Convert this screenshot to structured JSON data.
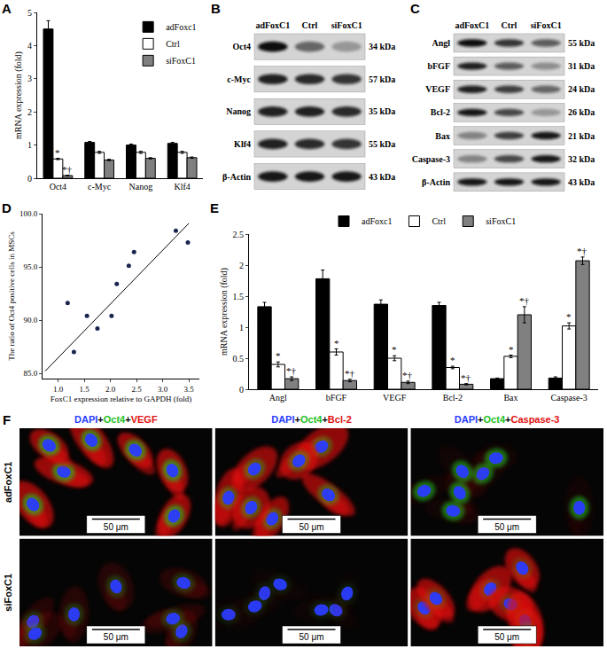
{
  "chart_data": [
    {
      "label": "A",
      "type": "bar",
      "y_label": "mRNA expression (fold)",
      "categories": [
        "Oct4",
        "c-Myc",
        "Nanog",
        "Klf4"
      ],
      "series": [
        {
          "name": "adFoxc1",
          "color": "#000000",
          "values": [
            4.5,
            1.08,
            1.0,
            1.05
          ],
          "errors": [
            0.25,
            0.03,
            0.03,
            0.03
          ]
        },
        {
          "name": "Ctrl",
          "color": "#ffffff",
          "values": [
            0.58,
            0.78,
            0.78,
            0.78
          ],
          "errors": [
            0.02,
            0.03,
            0.03,
            0.03
          ]
        },
        {
          "name": "siFoxC1",
          "color": "#808080",
          "values": [
            0.08,
            0.55,
            0.6,
            0.62
          ],
          "errors": [
            0.01,
            0.02,
            0.02,
            0.02
          ]
        }
      ],
      "ylim": [
        0,
        5
      ],
      "yticks": [
        0,
        1,
        2,
        3,
        4,
        5
      ],
      "grid": false,
      "legend": "top right",
      "annotations": [
        {
          "category": "Oct4",
          "series": "Ctrl",
          "text": "*"
        },
        {
          "category": "Oct4",
          "series": "siFoxC1",
          "text": "*†"
        }
      ]
    },
    {
      "label": "D",
      "type": "scatter",
      "x_label": "FoxC1 expression relative to GAPDH (fold)",
      "y_label": "The ratio of Oct4 positive cells in MSCs",
      "series": [
        {
          "type": "scatter",
          "marker": "circle",
          "color": "#1a2550",
          "x": [
            1.18,
            1.3,
            1.55,
            1.75,
            2.02,
            2.12,
            2.35,
            2.45,
            3.25,
            3.48
          ],
          "values": [
            91.6,
            87.0,
            90.4,
            89.2,
            90.4,
            93.4,
            95.1,
            96.4,
            98.4,
            97.3
          ]
        },
        {
          "type": "line",
          "line_style": "solid",
          "color": "#000000",
          "x": [
            0.75,
            3.5
          ],
          "values": [
            85.2,
            99.1
          ]
        }
      ],
      "xlim": [
        0.7,
        3.7
      ],
      "xticks": [
        {
          "value": 1,
          "label": "1.0"
        },
        {
          "value": 1.5,
          "label": "1.5"
        },
        {
          "value": 2,
          "label": "2.0"
        },
        {
          "value": 2.5,
          "label": "2.5"
        },
        {
          "value": 3,
          "label": "3.0"
        },
        {
          "value": 3.5,
          "label": "3.5"
        }
      ],
      "ylim": [
        84.5,
        100
      ],
      "yticks": [
        {
          "value": 85,
          "label": "85.0"
        },
        {
          "value": 90,
          "label": "90.0"
        },
        {
          "value": 95,
          "label": "95.0"
        },
        {
          "value": 100,
          "label": "100.0"
        }
      ],
      "grid": false
    },
    {
      "label": "E",
      "type": "bar",
      "y_label": "mRNA expression (fold)",
      "categories": [
        "Angl",
        "bFGF",
        "VEGF",
        "Bcl-2",
        "Bax",
        "Caspase-3"
      ],
      "series": [
        {
          "name": "adFoxc1",
          "color": "#000000",
          "values": [
            1.33,
            1.78,
            1.37,
            1.35,
            0.17,
            0.18
          ],
          "errors": [
            0.07,
            0.14,
            0.07,
            0.05,
            0.01,
            0.02
          ]
        },
        {
          "name": "Ctrl",
          "color": "#ffffff",
          "values": [
            0.4,
            0.6,
            0.5,
            0.35,
            0.53,
            1.02
          ],
          "errors": [
            0.04,
            0.05,
            0.04,
            0.02,
            0.02,
            0.05
          ]
        },
        {
          "name": "siFoxC1",
          "color": "#808080",
          "values": [
            0.17,
            0.14,
            0.11,
            0.08,
            1.2,
            2.07
          ],
          "errors": [
            0.03,
            0.02,
            0.02,
            0.01,
            0.13,
            0.06
          ]
        }
      ],
      "ylim": [
        0,
        2.5
      ],
      "yticks": [
        0,
        0.5,
        1,
        1.5,
        2,
        2.5
      ],
      "grid": false,
      "legend": "top",
      "annotations": [
        {
          "category": "Angl",
          "series": "Ctrl",
          "text": "*"
        },
        {
          "category": "bFGF",
          "series": "Ctrl",
          "text": "*"
        },
        {
          "category": "VEGF",
          "series": "Ctrl",
          "text": "*"
        },
        {
          "category": "Bcl-2",
          "series": "Ctrl",
          "text": "*"
        },
        {
          "category": "Bax",
          "series": "Ctrl",
          "text": "*"
        },
        {
          "category": "Caspase-3",
          "series": "Ctrl",
          "text": "*"
        },
        {
          "category": "Angl",
          "series": "siFoxC1",
          "text": "*†"
        },
        {
          "category": "bFGF",
          "series": "siFoxC1",
          "text": "*†"
        },
        {
          "category": "VEGF",
          "series": "siFoxC1",
          "text": "*†"
        },
        {
          "category": "Bcl-2",
          "series": "siFoxC1",
          "text": "*†"
        },
        {
          "category": "Bax",
          "series": "siFoxC1",
          "text": "*†"
        },
        {
          "category": "Caspase-3",
          "series": "siFoxC1",
          "text": "*†"
        }
      ]
    }
  ],
  "blots": [
    {
      "label": "B",
      "lanes": [
        "adFoxC1",
        "Ctrl",
        "siFoxC1"
      ],
      "rows": [
        {
          "name": "Oct4",
          "size": "34 kDa",
          "band_intensity": [
            1.0,
            0.55,
            0.3
          ]
        },
        {
          "name": "c-Myc",
          "size": "57 kDa",
          "band_intensity": [
            0.9,
            0.85,
            0.8
          ]
        },
        {
          "name": "Nanog",
          "size": "35 kDa",
          "band_intensity": [
            0.9,
            0.9,
            0.85
          ]
        },
        {
          "name": "Klf4",
          "size": "55 kDa",
          "band_intensity": [
            0.9,
            0.85,
            0.8
          ]
        },
        {
          "name": "β-Actin",
          "size": "43 kDa",
          "band_intensity": [
            0.95,
            0.95,
            0.95
          ]
        }
      ]
    },
    {
      "label": "C",
      "lanes": [
        "adFoxC1",
        "Ctrl",
        "siFoxC1"
      ],
      "rows": [
        {
          "name": "Angl",
          "size": "55 kDa",
          "band_intensity": [
            1.0,
            0.8,
            0.6
          ]
        },
        {
          "name": "bFGF",
          "size": "31 kDa",
          "band_intensity": [
            0.9,
            0.6,
            0.35
          ]
        },
        {
          "name": "VEGF",
          "size": "24 kDa",
          "band_intensity": [
            0.9,
            0.75,
            0.55
          ]
        },
        {
          "name": "Bcl-2",
          "size": "26 kDa",
          "band_intensity": [
            0.95,
            0.7,
            0.3
          ]
        },
        {
          "name": "Bax",
          "size": "21 kDa",
          "band_intensity": [
            0.4,
            0.75,
            0.95
          ]
        },
        {
          "name": "Caspase-3",
          "size": "32 kDa",
          "band_intensity": [
            0.4,
            0.7,
            0.95
          ]
        },
        {
          "name": "β-Actin",
          "size": "43 kDa",
          "band_intensity": [
            0.95,
            0.95,
            0.95
          ]
        }
      ]
    }
  ],
  "micrographs": {
    "label": "F",
    "columns": [
      "DAPI+Oct4+VEGF",
      "DAPI+Oct4+Bcl-2",
      "DAPI+Oct4+Caspase-3"
    ],
    "channel_colors": [
      "#2a3cff",
      "#20c020",
      "#e01010"
    ],
    "rows": [
      "adFoxC1",
      "siFoxC1"
    ],
    "scale_bar": "50 μm",
    "oct4_signal": [
      [
        0.9,
        0.6,
        0.8
      ],
      [
        0.35,
        0.15,
        0.3
      ]
    ],
    "marker_signal": [
      [
        0.9,
        0.85,
        0.08
      ],
      [
        0.2,
        0.03,
        0.9
      ]
    ]
  }
}
